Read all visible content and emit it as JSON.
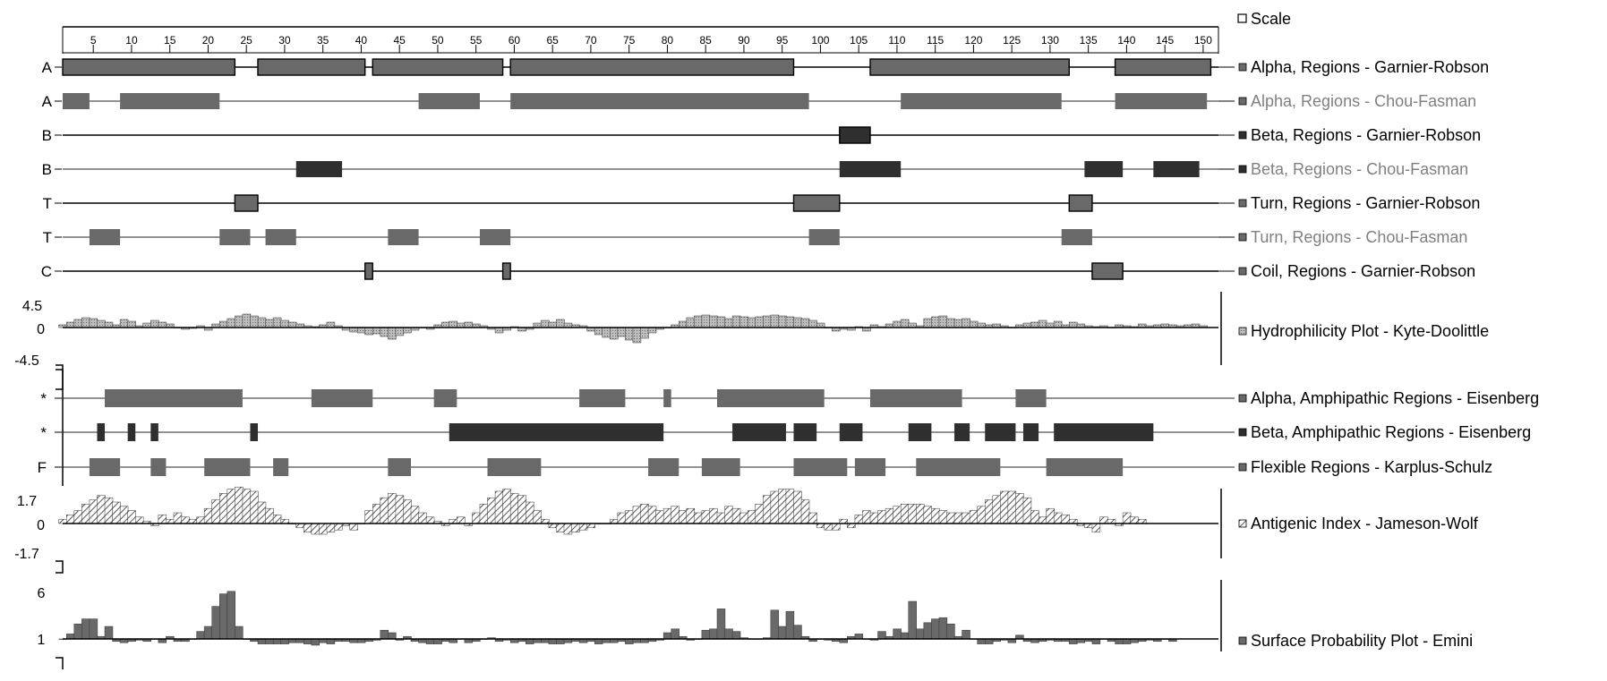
{
  "chart_data": {
    "type": "protein-secondary-structure-tracks",
    "x_axis": {
      "ticks": [
        5,
        10,
        15,
        20,
        25,
        30,
        35,
        40,
        45,
        50,
        55,
        60,
        65,
        70,
        75,
        80,
        85,
        90,
        95,
        100,
        105,
        110,
        115,
        120,
        125,
        130,
        135,
        140,
        145,
        150
      ],
      "range": [
        1,
        152
      ]
    },
    "legend_scale": "Scale",
    "colors": {
      "dark": "#2f2f2f",
      "medium": "#696969",
      "area_fill": "#a8a8a8",
      "hatch": "#555555",
      "text_dark": "#000000",
      "text_grey": "#808080"
    },
    "tracks": [
      {
        "letter": "A",
        "legend": "Alpha, Regions - Garnier-Robson",
        "color": "medium",
        "border": true,
        "text_color": "text_dark",
        "regions": [
          [
            1,
            23.5
          ],
          [
            26.5,
            40.5
          ],
          [
            41.5,
            58.5
          ],
          [
            59.5,
            96.5
          ],
          [
            106.5,
            132.5
          ],
          [
            138.5,
            151
          ]
        ]
      },
      {
        "letter": "A",
        "legend": "Alpha, Regions - Chou-Fasman",
        "color": "medium",
        "border": false,
        "text_color": "text_grey",
        "regions": [
          [
            1,
            4.5
          ],
          [
            8.5,
            21.5
          ],
          [
            47.5,
            55.5
          ],
          [
            59.5,
            98.5
          ],
          [
            110.5,
            131.5
          ],
          [
            138.5,
            150.5
          ]
        ]
      },
      {
        "letter": "B",
        "legend": "Beta, Regions - Garnier-Robson",
        "color": "dark",
        "border": true,
        "text_color": "text_dark",
        "regions": [
          [
            102.5,
            106.5
          ]
        ]
      },
      {
        "letter": "B",
        "legend": "Beta, Regions - Chou-Fasman",
        "color": "dark",
        "border": false,
        "text_color": "text_grey",
        "regions": [
          [
            31.5,
            37.5
          ],
          [
            102.5,
            110.5
          ],
          [
            134.5,
            139.5
          ],
          [
            143.5,
            149.5
          ]
        ]
      },
      {
        "letter": "T",
        "legend": "Turn, Regions - Garnier-Robson",
        "color": "medium",
        "border": true,
        "text_color": "text_dark",
        "regions": [
          [
            23.5,
            26.5
          ],
          [
            96.5,
            102.5
          ],
          [
            132.5,
            135.5
          ]
        ]
      },
      {
        "letter": "T",
        "legend": "Turn, Regions - Chou-Fasman",
        "color": "medium",
        "border": false,
        "text_color": "text_grey",
        "regions": [
          [
            4.5,
            8.5
          ],
          [
            21.5,
            25.5
          ],
          [
            27.5,
            31.5
          ],
          [
            43.5,
            47.5
          ],
          [
            55.5,
            59.5
          ],
          [
            98.5,
            102.5
          ],
          [
            131.5,
            135.5
          ]
        ]
      },
      {
        "letter": "C",
        "legend": "Coil, Regions - Garnier-Robson",
        "color": "medium",
        "border": true,
        "text_color": "text_dark",
        "regions": [
          [
            40.5,
            41.5
          ],
          [
            58.5,
            59.5
          ],
          [
            135.5,
            139.5
          ]
        ]
      }
    ],
    "hydrophilicity": {
      "legend": "Hydrophilicity Plot - Kyte-Doolittle",
      "y_labels": [
        "4.5",
        "0",
        "-4.5"
      ],
      "ylim": [
        -4.5,
        4.5
      ],
      "values": [
        0.3,
        0.6,
        0.9,
        1.1,
        1.0,
        0.8,
        0.6,
        0.3,
        0.9,
        0.7,
        0.2,
        0.5,
        0.8,
        0.6,
        0.4,
        0.0,
        -0.2,
        -0.1,
        0.2,
        -0.3,
        0.4,
        0.7,
        1.0,
        1.3,
        1.5,
        1.3,
        1.1,
        0.9,
        1.1,
        0.8,
        0.6,
        0.4,
        0.2,
        0.1,
        0.3,
        0.6,
        0.2,
        -0.3,
        -0.5,
        -0.6,
        -0.8,
        -0.7,
        -1.0,
        -1.3,
        -0.9,
        -0.6,
        -0.3,
        0.0,
        -0.2,
        0.3,
        0.6,
        0.7,
        0.5,
        0.6,
        0.4,
        0.2,
        -0.2,
        -0.6,
        -0.3,
        0.1,
        -0.4,
        -0.2,
        0.5,
        0.8,
        0.6,
        0.9,
        0.5,
        0.3,
        0.2,
        -0.4,
        -0.8,
        -1.1,
        -1.3,
        -1.0,
        -1.4,
        -1.7,
        -1.2,
        -0.6,
        -0.2,
        0.0,
        0.3,
        0.7,
        1.1,
        1.3,
        1.4,
        1.3,
        1.2,
        1.0,
        1.3,
        1.2,
        1.1,
        1.2,
        1.3,
        1.4,
        1.3,
        1.2,
        1.1,
        1.0,
        0.8,
        0.5,
        0.0,
        -0.4,
        -0.2,
        -0.3,
        0.1,
        -0.4,
        0.3,
        0.1,
        0.4,
        0.7,
        0.9,
        0.5,
        0.2,
        1.0,
        1.2,
        1.3,
        1.0,
        0.9,
        1.0,
        0.7,
        0.5,
        0.3,
        0.4,
        0.2,
        0.0,
        0.3,
        0.5,
        0.6,
        0.8,
        0.5,
        0.7,
        0.3,
        0.6,
        0.4,
        0.2,
        0.1,
        0.2,
        0.0,
        0.3,
        0.2,
        0.1,
        0.4,
        0.2,
        0.3,
        0.4,
        0.3,
        0.2,
        0.3,
        0.4,
        0.2
      ]
    },
    "amphipathic_tracks": [
      {
        "letter": "*",
        "legend": "Alpha, Amphipathic Regions - Eisenberg",
        "color": "medium",
        "regions": [
          [
            6.5,
            24.5
          ],
          [
            33.5,
            41.5
          ],
          [
            49.5,
            52.5
          ],
          [
            68.5,
            74.5
          ],
          [
            79.5,
            80.5
          ],
          [
            86.5,
            100.5
          ],
          [
            106.5,
            118.5
          ],
          [
            125.5,
            129.5
          ]
        ]
      },
      {
        "letter": "*",
        "legend": "Beta, Amphipathic Regions - Eisenberg",
        "color": "dark",
        "regions": [
          [
            5.5,
            6.5
          ],
          [
            9.5,
            10.5
          ],
          [
            12.5,
            13.5
          ],
          [
            25.5,
            26.5
          ],
          [
            51.5,
            79.5
          ],
          [
            88.5,
            95.5
          ],
          [
            96.5,
            99.5
          ],
          [
            102.5,
            105.5
          ],
          [
            111.5,
            114.5
          ],
          [
            117.5,
            119.5
          ],
          [
            121.5,
            125.5
          ],
          [
            126.5,
            128.5
          ],
          [
            130.5,
            143.5
          ]
        ]
      },
      {
        "letter": "F",
        "legend": "Flexible Regions - Karplus-Schulz",
        "color": "medium",
        "regions": [
          [
            4.5,
            8.5
          ],
          [
            12.5,
            14.5
          ],
          [
            19.5,
            25.5
          ],
          [
            28.5,
            30.5
          ],
          [
            43.5,
            46.5
          ],
          [
            56.5,
            63.5
          ],
          [
            77.5,
            81.5
          ],
          [
            84.5,
            89.5
          ],
          [
            96.5,
            103.5
          ],
          [
            104.5,
            108.5
          ],
          [
            112.5,
            123.5
          ],
          [
            129.5,
            139.5
          ]
        ]
      }
    ],
    "antigenic": {
      "legend": "Antigenic Index - Jameson-Wolf",
      "y_labels": [
        "1.7",
        "0",
        "-1.7"
      ],
      "ylim": [
        -1.7,
        1.7
      ],
      "values": [
        0.2,
        0.4,
        0.6,
        0.9,
        1.1,
        1.3,
        1.2,
        1.0,
        0.8,
        0.6,
        0.3,
        0.1,
        -0.1,
        0.4,
        0.2,
        0.5,
        0.3,
        0.2,
        0.3,
        0.7,
        1.1,
        1.4,
        1.6,
        1.7,
        1.6,
        1.5,
        1.0,
        0.7,
        0.4,
        0.2,
        0.0,
        -0.2,
        -0.4,
        -0.5,
        -0.5,
        -0.4,
        -0.3,
        -0.1,
        -0.3,
        0.0,
        0.6,
        0.9,
        1.2,
        1.4,
        1.3,
        1.1,
        0.8,
        0.5,
        0.3,
        0.1,
        -0.1,
        0.2,
        0.3,
        -0.1,
        0.5,
        0.9,
        1.2,
        1.5,
        1.6,
        1.4,
        1.3,
        1.0,
        0.6,
        0.2,
        -0.2,
        -0.4,
        -0.5,
        -0.4,
        -0.3,
        -0.2,
        0.0,
        0.0,
        0.2,
        0.5,
        0.6,
        0.8,
        0.9,
        0.8,
        0.6,
        0.7,
        0.8,
        0.6,
        0.7,
        0.5,
        0.6,
        0.7,
        0.5,
        0.8,
        0.7,
        0.5,
        0.6,
        0.9,
        1.3,
        1.5,
        1.6,
        1.6,
        1.5,
        1.1,
        0.5,
        -0.2,
        -0.3,
        -0.3,
        0.2,
        -0.2,
        0.4,
        0.6,
        0.5,
        0.6,
        0.7,
        0.8,
        0.9,
        0.9,
        0.9,
        0.8,
        0.7,
        0.6,
        0.5,
        0.5,
        0.5,
        0.6,
        0.8,
        1.1,
        1.3,
        1.5,
        1.5,
        1.4,
        1.2,
        0.6,
        0.3,
        0.7,
        0.5,
        0.4,
        0.2,
        -0.1,
        -0.2,
        -0.4,
        0.3,
        0.2,
        -0.1,
        0.5,
        0.3,
        0.2
      ]
    },
    "surface": {
      "legend": "Surface Probability Plot - Emini",
      "y_labels": [
        "6",
        "1"
      ],
      "values": [
        1.0,
        1.4,
        2.2,
        2.6,
        2.6,
        1.2,
        2.0,
        0.8,
        0.7,
        0.8,
        0.9,
        0.8,
        1.0,
        0.7,
        1.2,
        0.8,
        0.8,
        1.0,
        1.6,
        2.0,
        3.6,
        4.6,
        4.8,
        2.0,
        1.0,
        0.8,
        0.6,
        0.6,
        0.6,
        0.6,
        0.7,
        0.7,
        0.6,
        0.5,
        0.7,
        0.6,
        0.8,
        0.8,
        0.7,
        0.7,
        0.8,
        0.9,
        1.7,
        1.5,
        0.9,
        1.2,
        0.8,
        0.7,
        0.6,
        0.6,
        0.8,
        0.7,
        1.0,
        0.7,
        0.8,
        1.0,
        1.1,
        0.8,
        0.9,
        0.7,
        0.8,
        0.6,
        0.7,
        0.7,
        0.6,
        0.6,
        0.7,
        0.8,
        0.7,
        0.8,
        0.6,
        0.7,
        0.7,
        0.8,
        0.6,
        0.7,
        0.7,
        0.8,
        0.9,
        1.5,
        1.8,
        1.2,
        0.9,
        1.0,
        1.7,
        1.8,
        3.4,
        1.8,
        1.6,
        1.1,
        1.0,
        1.0,
        1.1,
        3.3,
        2.0,
        3.2,
        2.1,
        1.2,
        0.8,
        1.0,
        0.9,
        0.8,
        0.7,
        1.2,
        1.4,
        1.0,
        0.9,
        1.6,
        1.2,
        1.8,
        1.5,
        4.0,
        1.8,
        2.3,
        2.6,
        2.7,
        2.2,
        1.2,
        1.7,
        1.0,
        0.6,
        0.6,
        0.8,
        0.9,
        0.7,
        1.3,
        0.8,
        0.7,
        0.8,
        0.9,
        0.8,
        0.8,
        0.6,
        0.7,
        0.8,
        0.6,
        1.0,
        0.8,
        0.6,
        0.6,
        0.7,
        0.8,
        0.9,
        0.8,
        1.0,
        0.8
      ]
    }
  }
}
